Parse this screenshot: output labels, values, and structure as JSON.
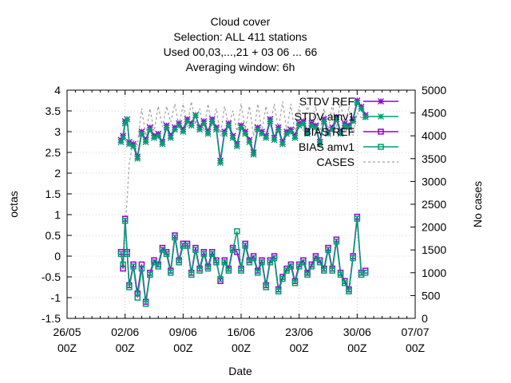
{
  "chart_data": {
    "type": "line",
    "title_lines": [
      "Cloud cover",
      "Selection: ALL    411 stations",
      "Used  00,03,...,21  + 03 06 ... 66",
      "Averaging window:  6h"
    ],
    "xlabel": "Date",
    "ylabel": "octas",
    "y2label": "No cases",
    "ylim": [
      -1.5,
      4
    ],
    "y2lim": [
      0,
      5000
    ],
    "yticks": [
      "-1.5",
      "-1",
      "-0.5",
      "0",
      "0.5",
      "1",
      "1.5",
      "2",
      "2.5",
      "3",
      "3.5",
      "4"
    ],
    "y2ticks": [
      "0",
      "500",
      "1000",
      "1500",
      "2000",
      "2500",
      "3000",
      "3500",
      "4000",
      "4500",
      "5000"
    ],
    "xticks": [
      {
        "day": 0,
        "line1": "26/05",
        "line2": "00Z"
      },
      {
        "day": 7,
        "line1": "02/06",
        "line2": "00Z"
      },
      {
        "day": 14,
        "line1": "09/06",
        "line2": "00Z"
      },
      {
        "day": 21,
        "line1": "16/06",
        "line2": "00Z"
      },
      {
        "day": 28,
        "line1": "23/06",
        "line2": "00Z"
      },
      {
        "day": 35,
        "line1": "30/06",
        "line2": "00Z"
      },
      {
        "day": 42,
        "line1": "07/07",
        "line2": "00Z"
      }
    ],
    "grid": true,
    "legend_position": "top-right",
    "colors": {
      "ref": "#9400d3",
      "exp": "#009e73",
      "cases": "#a0a0a0"
    },
    "series": [
      {
        "name": "STDV REF",
        "axis": "y",
        "color": "#9400d3",
        "marker": "star",
        "x": [
          6.5,
          6.75,
          7,
          7.25,
          7.5,
          8,
          8.5,
          9,
          9.5,
          10,
          10.5,
          11,
          11.5,
          12,
          12.5,
          13,
          13.5,
          14,
          14.5,
          15,
          15.5,
          16,
          16.5,
          17,
          17.5,
          18,
          18.5,
          19,
          19.5,
          20,
          20.5,
          21,
          21.5,
          22,
          22.5,
          23,
          23.5,
          24,
          24.5,
          25,
          25.5,
          26,
          26.5,
          27,
          27.5,
          28,
          28.5,
          29,
          29.5,
          30,
          30.5,
          31,
          31.5,
          32,
          32.5,
          33,
          33.5,
          34,
          34.5,
          35,
          35.5,
          36
        ],
        "values": [
          2.8,
          2.9,
          3.25,
          3.3,
          2.75,
          2.7,
          2.4,
          3.0,
          2.8,
          3.1,
          2.9,
          2.95,
          2.75,
          3.15,
          2.9,
          3.1,
          3.2,
          3.05,
          3.3,
          3.2,
          3.4,
          3.1,
          3.25,
          3.0,
          3.3,
          3.1,
          2.3,
          3.0,
          3.2,
          2.9,
          2.7,
          3.15,
          3.0,
          2.8,
          2.5,
          3.1,
          3.0,
          2.9,
          3.3,
          2.85,
          3.1,
          2.75,
          3.0,
          3.05,
          2.9,
          3.2,
          3.25,
          3.0,
          3.2,
          3.15,
          2.75,
          3.3,
          3.0,
          3.1,
          3.35,
          3.0,
          3.2,
          3.15,
          3.3,
          3.75,
          3.6,
          3.4
        ]
      },
      {
        "name": "STDV amv1",
        "axis": "y",
        "color": "#009e73",
        "marker": "star",
        "x": [
          6.5,
          6.75,
          7,
          7.25,
          7.5,
          8,
          8.5,
          9,
          9.5,
          10,
          10.5,
          11,
          11.5,
          12,
          12.5,
          13,
          13.5,
          14,
          14.5,
          15,
          15.5,
          16,
          16.5,
          17,
          17.5,
          18,
          18.5,
          19,
          19.5,
          20,
          20.5,
          21,
          21.5,
          22,
          22.5,
          23,
          23.5,
          24,
          24.5,
          25,
          25.5,
          26,
          26.5,
          27,
          27.5,
          28,
          28.5,
          29,
          29.5,
          30,
          30.5,
          31,
          31.5,
          32,
          32.5,
          33,
          33.5,
          34,
          34.5,
          35,
          35.5,
          36
        ],
        "values": [
          2.75,
          2.85,
          3.2,
          3.3,
          2.7,
          2.65,
          2.35,
          2.95,
          2.75,
          3.05,
          2.85,
          2.9,
          2.7,
          3.1,
          2.85,
          3.05,
          3.15,
          3.0,
          3.25,
          3.15,
          3.4,
          3.05,
          3.2,
          2.95,
          3.25,
          3.05,
          2.25,
          2.95,
          3.15,
          2.85,
          2.65,
          3.1,
          2.95,
          2.75,
          2.45,
          3.05,
          2.95,
          2.85,
          3.25,
          2.8,
          3.05,
          2.7,
          2.95,
          3.0,
          2.85,
          3.15,
          3.2,
          2.95,
          3.15,
          3.1,
          2.7,
          3.25,
          2.95,
          3.05,
          3.3,
          2.95,
          3.15,
          3.1,
          3.25,
          3.7,
          3.55,
          3.35
        ]
      },
      {
        "name": "BIAS REF",
        "axis": "y",
        "color": "#9400d3",
        "marker": "square",
        "x": [
          6.5,
          6.75,
          7,
          7.25,
          7.5,
          8,
          8.5,
          9,
          9.5,
          10,
          10.5,
          11,
          11.5,
          12,
          12.5,
          13,
          13.5,
          14,
          14.5,
          15,
          15.5,
          16,
          16.5,
          17,
          17.5,
          18,
          18.5,
          19,
          19.5,
          20,
          20.5,
          21,
          21.5,
          22,
          22.5,
          23,
          23.5,
          24,
          24.5,
          25,
          25.5,
          26,
          26.5,
          27,
          27.5,
          28,
          28.5,
          29,
          29.5,
          30,
          30.5,
          31,
          31.5,
          32,
          32.5,
          33,
          33.5,
          34,
          34.5,
          35,
          35.5,
          36
        ],
        "values": [
          0.1,
          -0.3,
          0.9,
          0.1,
          -0.7,
          -0.2,
          -0.9,
          -0.2,
          -1.1,
          -0.4,
          -0.1,
          -0.2,
          0.2,
          0.1,
          -0.35,
          0.5,
          -0.1,
          0.3,
          0.3,
          -0.4,
          0.2,
          -0.3,
          0.1,
          -0.25,
          0.1,
          -0.1,
          -0.6,
          -0.1,
          -0.3,
          0.2,
          0.1,
          -0.3,
          0.3,
          -0.1,
          0.0,
          -0.35,
          -0.1,
          -0.7,
          -0.1,
          0.0,
          -0.8,
          -0.5,
          -0.3,
          -0.2,
          -0.6,
          -0.2,
          -0.1,
          -0.4,
          -0.2,
          0.0,
          -0.1,
          -0.3,
          0.2,
          -0.3,
          0.4,
          -0.4,
          -0.6,
          -0.8,
          0.0,
          0.95,
          -0.4,
          -0.35
        ]
      },
      {
        "name": "BIAS amv1",
        "axis": "y",
        "color": "#009e73",
        "marker": "square",
        "x": [
          6.5,
          6.75,
          7,
          7.25,
          7.5,
          8,
          8.5,
          9,
          9.5,
          10,
          10.5,
          11,
          11.5,
          12,
          12.5,
          13,
          13.5,
          14,
          14.5,
          15,
          15.5,
          16,
          16.5,
          17,
          17.5,
          18,
          18.5,
          19,
          19.5,
          20,
          20.5,
          21,
          21.5,
          22,
          22.5,
          23,
          23.5,
          24,
          24.5,
          25,
          25.5,
          26,
          26.5,
          27,
          27.5,
          28,
          28.5,
          29,
          29.5,
          30,
          30.5,
          31,
          31.5,
          32,
          32.5,
          33,
          33.5,
          34,
          34.5,
          35,
          35.5,
          36
        ],
        "values": [
          0.05,
          -0.2,
          0.85,
          0.05,
          -0.75,
          -0.25,
          -1.0,
          -0.3,
          -1.15,
          -0.45,
          -0.15,
          -0.25,
          0.15,
          0.05,
          -0.4,
          0.45,
          -0.15,
          0.25,
          0.25,
          -0.45,
          0.15,
          -0.35,
          0.05,
          -0.3,
          0.05,
          -0.15,
          -0.55,
          -0.15,
          -0.35,
          0.15,
          0.6,
          -0.35,
          0.25,
          -0.15,
          -0.05,
          -0.4,
          -0.15,
          -0.75,
          -0.15,
          -0.05,
          -0.85,
          -0.55,
          -0.35,
          -0.25,
          -0.65,
          -0.25,
          -0.15,
          -0.45,
          -0.25,
          -0.05,
          -0.15,
          -0.35,
          0.15,
          -0.35,
          0.35,
          -0.45,
          -0.65,
          -0.85,
          -0.05,
          0.9,
          -0.45,
          -0.4
        ]
      },
      {
        "name": "CASES",
        "axis": "y2",
        "color": "#a0a0a0",
        "marker": "none",
        "x": [
          7,
          7.5,
          8,
          8.5,
          9,
          9.5,
          10,
          10.5,
          11,
          11.5,
          12,
          12.5,
          13,
          13.5,
          14,
          14.5,
          15,
          15.5,
          16,
          16.5,
          17,
          17.5,
          18,
          18.5,
          19,
          19.5,
          20,
          20.5,
          21,
          21.5,
          22,
          22.5,
          23,
          23.5,
          24,
          24.5,
          25,
          25.5,
          26,
          26.5,
          27,
          27.5,
          28,
          28.5,
          29,
          29.5,
          30,
          30.5,
          31,
          31.5,
          32,
          32.5,
          33,
          33.5,
          34,
          34.5,
          35,
          35.5,
          36
        ],
        "values": [
          1900,
          3400,
          3900,
          3800,
          4600,
          4000,
          4600,
          4100,
          4650,
          4200,
          4650,
          4300,
          4700,
          4200,
          4700,
          4200,
          4750,
          4250,
          4600,
          4100,
          4700,
          4200,
          4600,
          4000,
          4650,
          4200,
          4550,
          4100,
          4700,
          4150,
          4650,
          4000,
          4700,
          4100,
          4650,
          4200,
          4700,
          4150,
          4750,
          4100,
          4700,
          4050,
          4650,
          4100,
          4700,
          4200,
          4650,
          4050,
          4600,
          4100,
          4700,
          4200,
          4750,
          4100,
          4650,
          4000,
          4500,
          4400,
          4350
        ]
      }
    ]
  }
}
